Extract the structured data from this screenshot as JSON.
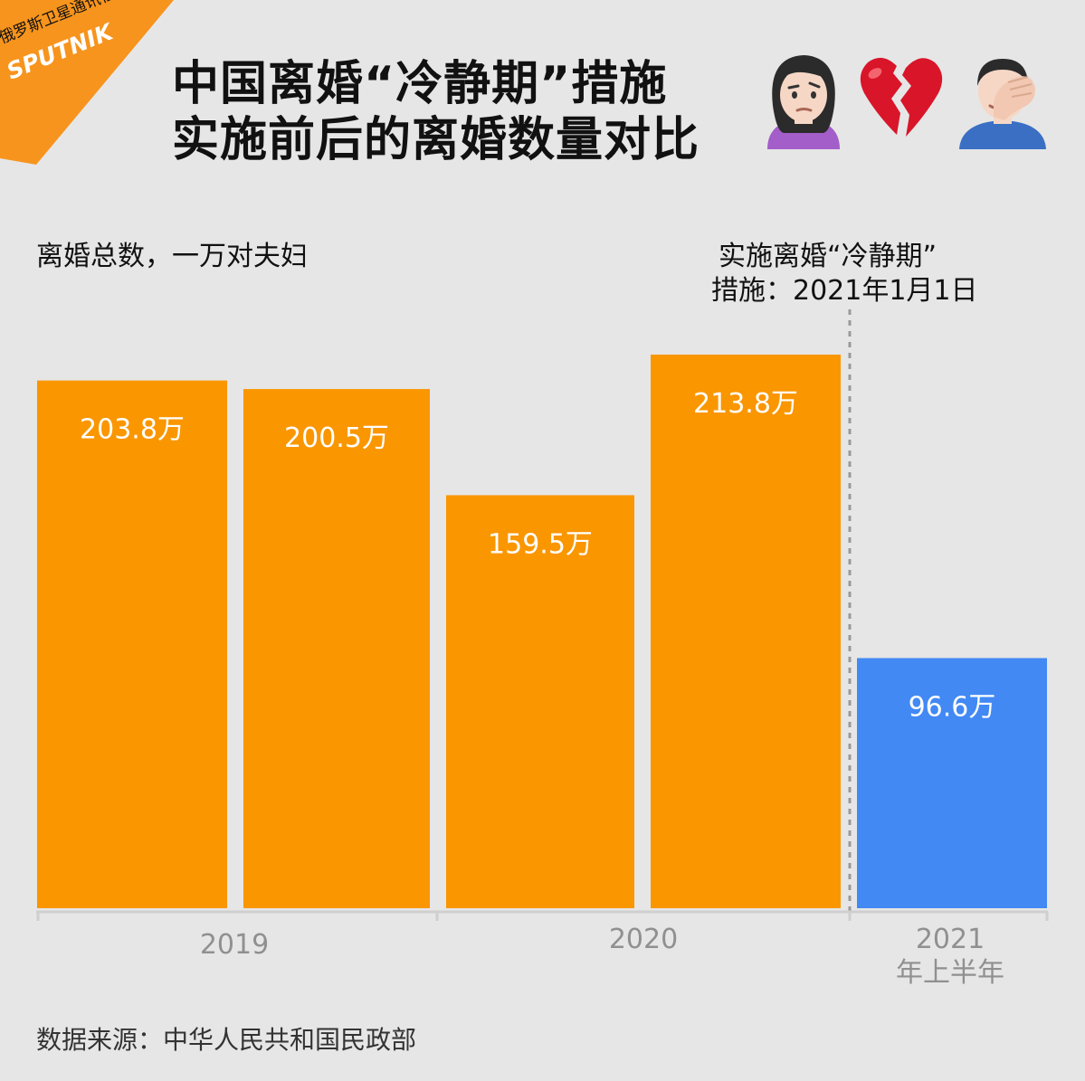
{
  "brand": {
    "agency": "俄罗斯卫星通讯社",
    "logo": "SPUTNIK",
    "color": "#f7941d"
  },
  "title": {
    "line1": "中国离婚“冷静期”措施",
    "line2": "实施前后的离婚数量对比"
  },
  "emojis": [
    "woman-raising-eyebrow-icon",
    "broken-heart-icon",
    "man-facepalming-icon"
  ],
  "colors": {
    "before": "#fa9600",
    "after": "#4289f4",
    "background": "#e6e6e6"
  },
  "source": "数据来源：中华人民共和国民政部",
  "chart_data": {
    "type": "bar",
    "ylabel": "离婚总数，一万对夫妇",
    "annotation": {
      "line1": "实施离婚“冷静期”",
      "line2": "措施：2021年1月1日"
    },
    "values": [
      203.8,
      200.5,
      159.5,
      213.8,
      96.6
    ],
    "data_labels": [
      "203.8万",
      "200.5万",
      "159.5万",
      "213.8万",
      "96.6万"
    ],
    "bar_periods": [
      "2019",
      "2019",
      "2020",
      "2020",
      "2021 年上半年"
    ],
    "groups": [
      {
        "label": "2019"
      },
      {
        "label": "2020"
      },
      {
        "label": "2021",
        "sublabel": "年上半年"
      }
    ],
    "ylim": [
      0,
      213.8
    ],
    "grid": false,
    "legend": "none"
  }
}
